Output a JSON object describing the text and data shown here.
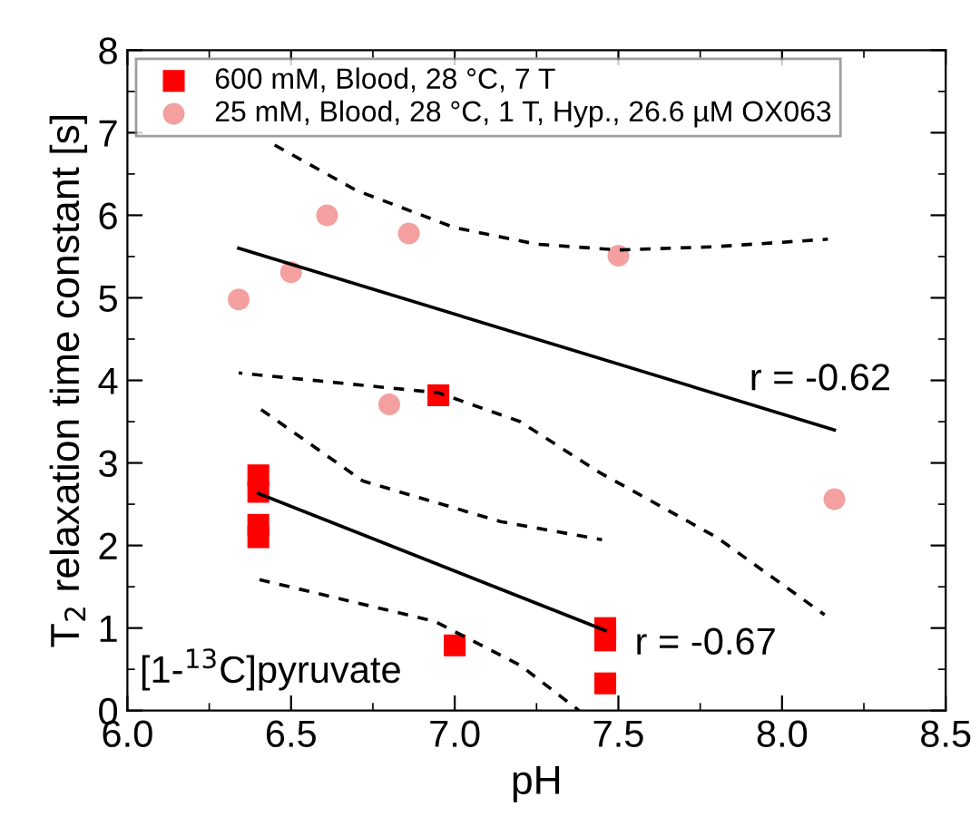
{
  "chart_data": {
    "type": "scatter",
    "xlabel": "pH",
    "ylabel": "T$_{2}$ relaxation time constant [s]",
    "xlim": [
      6.0,
      8.5
    ],
    "ylim": [
      0,
      8
    ],
    "xticks": [
      {
        "value": 6.0,
        "label": "6.0"
      },
      {
        "value": 6.5,
        "label": "6.5"
      },
      {
        "value": 7.0,
        "label": "7.0"
      },
      {
        "value": 7.5,
        "label": "7.5"
      },
      {
        "value": 8.0,
        "label": "8.0"
      },
      {
        "value": 8.5,
        "label": "8.5"
      }
    ],
    "yticks": [
      0,
      1,
      2,
      3,
      4,
      5,
      6,
      7,
      8
    ],
    "grid": false,
    "legend": "top left",
    "series": [
      {
        "name": "600 mM, Blood, 28 °C, 7 T",
        "marker": "square",
        "color": "#ff0000",
        "x": [
          6.95,
          6.4,
          6.4,
          6.4,
          6.4,
          7.0,
          7.46,
          7.46,
          7.46
        ],
        "values": [
          3.82,
          2.85,
          2.65,
          2.25,
          2.1,
          0.79,
          1.0,
          0.85,
          0.33
        ]
      },
      {
        "name": "25 mM, Blood, 28 °C, 1 T, Hyp., 26.6 µM OX063",
        "marker": "circle",
        "color": "#f4a0a0",
        "x": [
          6.34,
          6.5,
          6.61,
          6.86,
          7.5,
          6.8,
          8.16
        ],
        "values": [
          4.98,
          5.31,
          6.0,
          5.78,
          5.51,
          3.71,
          2.56
        ]
      },
      {
        "type": "line",
        "line_style": "solid",
        "color": "#000000",
        "x": [
          6.34,
          8.16
        ],
        "values": [
          5.6,
          3.4
        ]
      },
      {
        "type": "line",
        "line_style": "dashed",
        "color": "#000000",
        "x": [
          6.45,
          6.7,
          7.0,
          7.25,
          7.5,
          7.8,
          8.14
        ],
        "values": [
          6.85,
          6.3,
          5.85,
          5.65,
          5.58,
          5.62,
          5.71
        ]
      },
      {
        "type": "line",
        "line_style": "dashed",
        "color": "#000000",
        "x": [
          6.34,
          6.95,
          7.2,
          7.44,
          7.8,
          8.13
        ],
        "values": [
          4.09,
          3.85,
          3.5,
          2.89,
          2.1,
          1.16
        ]
      },
      {
        "type": "line",
        "line_style": "solid",
        "color": "#000000",
        "x": [
          6.4,
          7.46
        ],
        "values": [
          2.63,
          0.97
        ]
      },
      {
        "type": "line",
        "line_style": "dashed",
        "color": "#000000",
        "x": [
          6.4,
          6.72,
          7.14,
          7.45
        ],
        "values": [
          3.67,
          2.78,
          2.29,
          2.07
        ]
      },
      {
        "type": "line",
        "line_style": "dashed",
        "color": "#000000",
        "x": [
          6.4,
          6.94,
          7.2,
          7.38
        ],
        "values": [
          1.59,
          1.08,
          0.55,
          0
        ]
      }
    ],
    "annotations": [
      "r = -0.62",
      "r = -0.67",
      "[1-$^{13}$C]pyruvate"
    ]
  }
}
